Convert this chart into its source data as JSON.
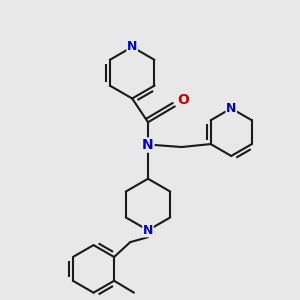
{
  "bg_color": "#e8e8e8",
  "bond_color": "#1a1a1a",
  "N_color": "#0000cc",
  "O_color": "#cc0000",
  "line_width": 1.5,
  "font_size": 9,
  "fig_size": [
    3.0,
    3.0
  ],
  "dpi": 100,
  "xlim": [
    0,
    300
  ],
  "ylim": [
    0,
    300
  ]
}
